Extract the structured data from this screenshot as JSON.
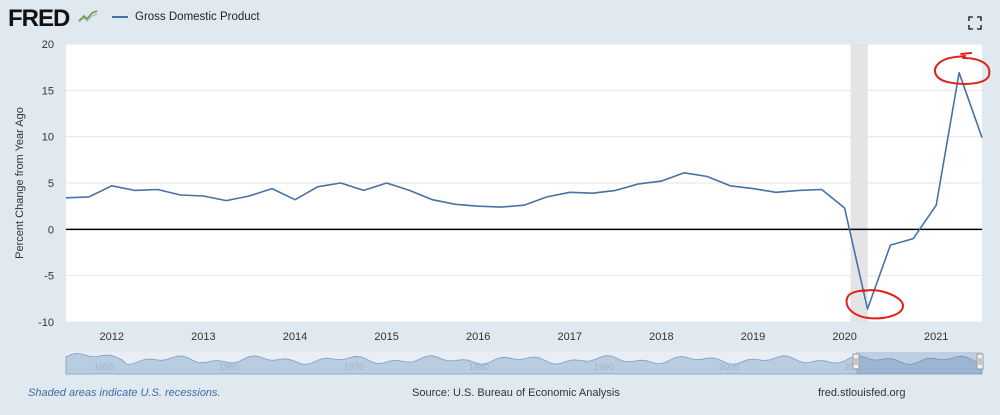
{
  "header": {
    "logo_text": "FRED",
    "logo_icon": "chart-line-icon",
    "legend_label": "Gross Domestic Product"
  },
  "chart_data": {
    "type": "line",
    "title": "",
    "xlabel": "",
    "ylabel": "Percent Change from Year Ago",
    "ylim": [
      -10,
      20
    ],
    "yticks": [
      -10,
      -5,
      0,
      5,
      10,
      15,
      20
    ],
    "xticks": [
      2012,
      2013,
      2014,
      2015,
      2016,
      2017,
      2018,
      2019,
      2020,
      2021
    ],
    "xlim": [
      2011.5,
      2021.5
    ],
    "recession": {
      "start": 2020.0,
      "end": 2020.25
    },
    "zero_line": true,
    "series": [
      {
        "name": "Gross Domestic Product",
        "color": "#4572a7",
        "x": [
          2011.5,
          2011.75,
          2012.0,
          2012.25,
          2012.5,
          2012.75,
          2013.0,
          2013.25,
          2013.5,
          2013.75,
          2014.0,
          2014.25,
          2014.5,
          2014.75,
          2015.0,
          2015.25,
          2015.5,
          2015.75,
          2016.0,
          2016.25,
          2016.5,
          2016.75,
          2017.0,
          2017.25,
          2017.5,
          2017.75,
          2018.0,
          2018.25,
          2018.5,
          2018.75,
          2019.0,
          2019.25,
          2019.5,
          2019.75,
          2020.0,
          2020.25,
          2020.5,
          2020.75,
          2021.0,
          2021.25,
          2021.5
        ],
        "values": [
          3.4,
          3.5,
          4.7,
          4.2,
          4.3,
          3.7,
          3.6,
          3.1,
          3.6,
          4.4,
          3.2,
          4.6,
          5.0,
          4.2,
          5.0,
          4.2,
          3.2,
          2.7,
          2.5,
          2.4,
          2.6,
          3.5,
          4.0,
          3.9,
          4.2,
          4.9,
          5.2,
          6.1,
          5.7,
          4.7,
          4.4,
          4.0,
          4.2,
          4.3,
          2.3,
          -8.6,
          -1.7,
          -1.0,
          2.6,
          16.9,
          9.9
        ]
      }
    ],
    "annotations": [
      {
        "type": "circle",
        "color": "#e0201a",
        "at_year": 2021.25,
        "at_value": 17.2
      },
      {
        "type": "circle",
        "color": "#e0201a",
        "at_year": 2020.33,
        "at_value": -8.3
      }
    ],
    "navigator_labels": [
      "1950",
      "1960",
      "1970",
      "1980",
      "1990",
      "2000",
      "2010"
    ]
  },
  "footer": {
    "note": "Shaded areas indicate U.S. recessions.",
    "source": "Source: U.S. Bureau of Economic Analysis",
    "site": "fred.stlouisfed.org",
    "expand_icon": "expand-icon"
  }
}
